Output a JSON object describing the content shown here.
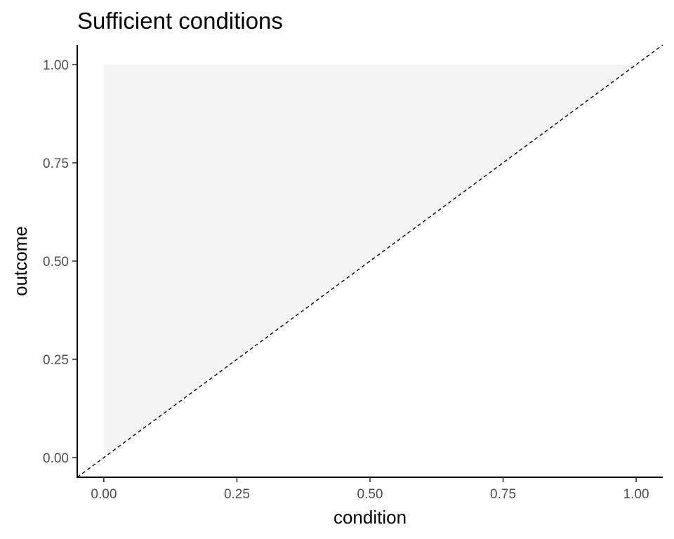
{
  "chart_data": {
    "type": "area",
    "title": "Sufficient conditions",
    "xlabel": "condition",
    "ylabel": "outcome",
    "xlim": [
      -0.05,
      1.05
    ],
    "ylim": [
      -0.05,
      1.05
    ],
    "x_ticks": [
      0.0,
      0.25,
      0.5,
      0.75,
      1.0
    ],
    "x_tick_labels": [
      "0.00",
      "0.25",
      "0.50",
      "0.75",
      "1.00"
    ],
    "y_ticks": [
      0.0,
      0.25,
      0.5,
      0.75,
      1.0
    ],
    "y_tick_labels": [
      "0.00",
      "0.25",
      "0.50",
      "0.75",
      "1.00"
    ],
    "shaded_region": {
      "points": [
        [
          0,
          0
        ],
        [
          0,
          1
        ],
        [
          1,
          1
        ]
      ],
      "color": "#f5f5f5"
    },
    "reference_line": {
      "from": [
        -0.05,
        -0.05
      ],
      "to": [
        1.05,
        1.05
      ],
      "style": "dashed",
      "color": "#000000"
    },
    "grid": false
  }
}
